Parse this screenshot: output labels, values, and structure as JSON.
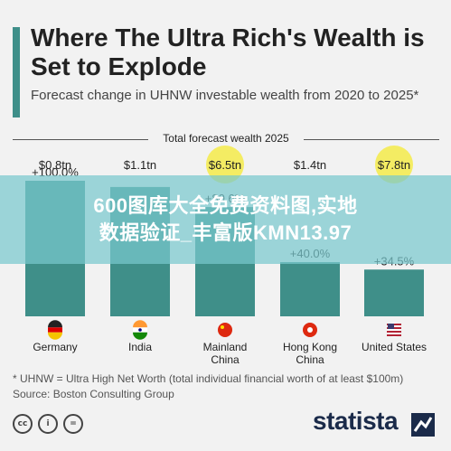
{
  "header": {
    "title": "Where The Ultra Rich's Wealth is Set to Explode",
    "subtitle": "Forecast change in UHNW investable wealth from 2020 to 2025*",
    "total_label": "Total forecast wealth 2025"
  },
  "chart_data": {
    "type": "bar",
    "categories": [
      "Germany",
      "India",
      "Mainland China",
      "Hong Kong China",
      "United States"
    ],
    "categories_display": [
      [
        "Germany"
      ],
      [
        "India"
      ],
      [
        "Mainland",
        "China"
      ],
      [
        "Hong Kong",
        "China"
      ],
      [
        "United States"
      ]
    ],
    "values": [
      100.0,
      95.4,
      80.6,
      40.0,
      34.5
    ],
    "value_labels": [
      "+100.0%",
      "",
      "+80.6%",
      "+40.0%",
      "+34.5%"
    ],
    "totals": [
      "$0.8tn",
      "$1.1tn",
      "$6.5tn",
      "$1.4tn",
      "$7.8tn"
    ],
    "highlighted_totals": [
      false,
      false,
      true,
      false,
      true
    ],
    "flags": [
      "germany-flag",
      "india-flag",
      "china-flag",
      "hong-kong-flag",
      "united-states-flag"
    ],
    "ylim": [
      0,
      100
    ],
    "grid": false,
    "title": "Where The Ultra Rich's Wealth is Set to Explode",
    "xlabel": "",
    "ylabel": ""
  },
  "banner": {
    "line1": "600图库大全免费资料图,实地",
    "line2": "数据验证_丰富版KMN13.97"
  },
  "footer": {
    "footnote": "* UHNW = Ultra High Net Worth (total individual financial worth of at least $100m)",
    "source": "Source: Boston Consulting Group",
    "license_icons": [
      "cc",
      "i",
      "="
    ],
    "brand": "statista"
  },
  "colors": {
    "bar": "#3f8f89",
    "highlight": "#f4ec63",
    "accent": "#3f8f89",
    "brand": "#1b2b4a"
  }
}
